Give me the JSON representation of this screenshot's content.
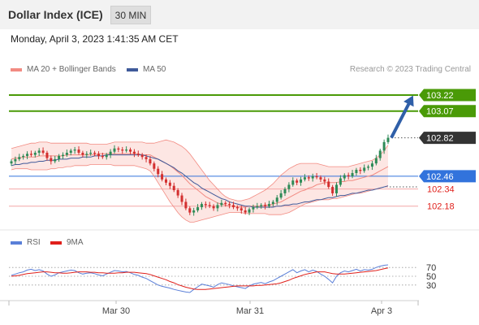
{
  "header": {
    "title": "Dollar Index (ICE)",
    "timeframe": "30 MIN",
    "datetime": "Monday, April 3, 2023 1:41:35 AM CET"
  },
  "legend": {
    "bollinger": "MA 20 + Bollinger Bands",
    "ma50": "MA 50",
    "credit": "Research © 2023 Trading Central"
  },
  "rsi_legend": {
    "rsi": "RSI",
    "ma9": "9MA"
  },
  "colors": {
    "bull": "#2e8b57",
    "bear": "#d32f2f",
    "band_fill": "#fde0dc",
    "ma20": "#f28b82",
    "ma50": "#3f5a9a",
    "resistance": "#4a9a07",
    "support_red": "#f4a7a7",
    "support_blue": "#3273dc",
    "last_price": "#333333",
    "arrow": "#2f5fa8",
    "rsi": "#5a7fd8",
    "rsi_ma": "#e0201b"
  },
  "chart_data": [
    {
      "type": "candlestick",
      "title": "Dollar Index (ICE)",
      "timeframe": "30 MIN",
      "ylim": [
        101.98,
        103.38
      ],
      "xlabels": [
        "Mar 30",
        "Mar 31",
        "Apr 3"
      ],
      "overlays": [
        "MA 20 + Bollinger Bands",
        "MA 50"
      ],
      "levels": [
        {
          "value": 103.22,
          "label": "103.22",
          "style": "resistance",
          "kind": "line",
          "badge": "green"
        },
        {
          "value": 103.07,
          "label": "103.07",
          "style": "resistance",
          "kind": "line",
          "badge": "green"
        },
        {
          "value": 102.82,
          "label": "102.82",
          "style": "last_price",
          "kind": "dotted",
          "badge": "dark"
        },
        {
          "value": 102.46,
          "label": "102.46",
          "style": "support_blue",
          "kind": "line",
          "badge": "blue"
        },
        {
          "value": 102.34,
          "label": "102.34",
          "style": "support_red",
          "kind": "line",
          "badge": "text"
        },
        {
          "value": 102.18,
          "label": "102.18",
          "style": "support_red",
          "kind": "line",
          "badge": "text"
        }
      ],
      "arrow": {
        "from": 102.82,
        "to": 103.22
      },
      "close": [
        102.6,
        102.62,
        102.64,
        102.65,
        102.67,
        102.66,
        102.68,
        102.7,
        102.68,
        102.63,
        102.6,
        102.62,
        102.65,
        102.66,
        102.68,
        102.7,
        102.71,
        102.68,
        102.66,
        102.67,
        102.68,
        102.67,
        102.65,
        102.64,
        102.66,
        102.69,
        102.72,
        102.71,
        102.7,
        102.71,
        102.69,
        102.67,
        102.66,
        102.64,
        102.62,
        102.58,
        102.53,
        102.48,
        102.43,
        102.4,
        102.37,
        102.33,
        102.28,
        102.22,
        102.16,
        102.12,
        102.14,
        102.17,
        102.2,
        102.19,
        102.18,
        102.16,
        102.19,
        102.21,
        102.2,
        102.19,
        102.17,
        102.16,
        102.14,
        102.12,
        102.15,
        102.17,
        102.18,
        102.19,
        102.18,
        102.2,
        102.22,
        102.26,
        102.3,
        102.34,
        102.38,
        102.42,
        102.4,
        102.43,
        102.45,
        102.44,
        102.46,
        102.45,
        102.43,
        102.41,
        102.36,
        102.3,
        102.38,
        102.44,
        102.47,
        102.46,
        102.49,
        102.52,
        102.51,
        102.54,
        102.55,
        102.58,
        102.63,
        102.7,
        102.78,
        102.82
      ],
      "ma20": [
        102.62,
        102.63,
        102.63,
        102.64,
        102.64,
        102.64,
        102.64,
        102.65,
        102.65,
        102.65,
        102.65,
        102.65,
        102.65,
        102.65,
        102.66,
        102.66,
        102.66,
        102.66,
        102.66,
        102.66,
        102.66,
        102.66,
        102.67,
        102.67,
        102.67,
        102.67,
        102.67,
        102.67,
        102.67,
        102.67,
        102.67,
        102.67,
        102.67,
        102.66,
        102.66,
        102.66,
        102.64,
        102.62,
        102.6,
        102.58,
        102.56,
        102.53,
        102.5,
        102.47,
        102.43,
        102.39,
        102.36,
        102.33,
        102.3,
        102.27,
        102.25,
        102.23,
        102.21,
        102.2,
        102.19,
        102.18,
        102.18,
        102.17,
        102.17,
        102.17,
        102.18,
        102.18,
        102.18,
        102.18,
        102.19,
        102.19,
        102.2,
        102.21,
        102.22,
        102.24,
        102.26,
        102.28,
        102.3,
        102.32,
        102.33,
        102.35,
        102.36,
        102.38,
        102.39,
        102.4,
        102.4,
        102.4,
        102.4,
        102.41,
        102.41,
        102.42,
        102.42,
        102.43,
        102.44,
        102.45,
        102.46,
        102.47,
        102.49,
        102.51,
        102.53,
        102.55
      ],
      "bb_upper": [
        102.72,
        102.73,
        102.74,
        102.75,
        102.76,
        102.77,
        102.77,
        102.78,
        102.78,
        102.78,
        102.77,
        102.77,
        102.77,
        102.77,
        102.77,
        102.77,
        102.77,
        102.77,
        102.77,
        102.77,
        102.76,
        102.76,
        102.76,
        102.76,
        102.76,
        102.77,
        102.78,
        102.78,
        102.78,
        102.78,
        102.78,
        102.78,
        102.78,
        102.78,
        102.77,
        102.77,
        102.77,
        102.78,
        102.79,
        102.8,
        102.79,
        102.78,
        102.76,
        102.74,
        102.71,
        102.67,
        102.62,
        102.57,
        102.52,
        102.47,
        102.42,
        102.38,
        102.34,
        102.3,
        102.27,
        102.25,
        102.24,
        102.23,
        102.23,
        102.24,
        102.25,
        102.27,
        102.29,
        102.31,
        102.33,
        102.36,
        102.39,
        102.43,
        102.47,
        102.5,
        102.53,
        102.55,
        102.57,
        102.58,
        102.58,
        102.58,
        102.58,
        102.58,
        102.57,
        102.56,
        102.55,
        102.55,
        102.55,
        102.55,
        102.55,
        102.55,
        102.56,
        102.57,
        102.58,
        102.59,
        102.6,
        102.61,
        102.63,
        102.66,
        102.7,
        102.75
      ],
      "bb_lower": [
        102.52,
        102.53,
        102.53,
        102.53,
        102.53,
        102.52,
        102.52,
        102.52,
        102.52,
        102.52,
        102.53,
        102.53,
        102.54,
        102.54,
        102.55,
        102.55,
        102.56,
        102.56,
        102.56,
        102.56,
        102.57,
        102.57,
        102.57,
        102.57,
        102.57,
        102.57,
        102.56,
        102.56,
        102.56,
        102.56,
        102.56,
        102.56,
        102.55,
        102.54,
        102.53,
        102.51,
        102.46,
        102.4,
        102.34,
        102.28,
        102.22,
        102.17,
        102.12,
        102.08,
        102.05,
        102.03,
        102.03,
        102.04,
        102.05,
        102.06,
        102.07,
        102.08,
        102.09,
        102.1,
        102.11,
        102.12,
        102.12,
        102.12,
        102.12,
        102.11,
        102.11,
        102.11,
        102.11,
        102.11,
        102.11,
        102.1,
        102.1,
        102.1,
        102.1,
        102.11,
        102.12,
        102.14,
        102.16,
        102.18,
        102.2,
        102.21,
        102.22,
        102.23,
        102.24,
        102.24,
        102.24,
        102.25,
        102.25,
        102.26,
        102.27,
        102.28,
        102.29,
        102.3,
        102.3,
        102.31,
        102.32,
        102.33,
        102.34,
        102.35,
        102.36,
        102.36
      ],
      "ma50": [
        102.56,
        102.57,
        102.57,
        102.58,
        102.58,
        102.59,
        102.59,
        102.6,
        102.6,
        102.61,
        102.61,
        102.61,
        102.62,
        102.62,
        102.62,
        102.63,
        102.63,
        102.63,
        102.64,
        102.64,
        102.64,
        102.65,
        102.65,
        102.65,
        102.66,
        102.66,
        102.66,
        102.66,
        102.66,
        102.66,
        102.66,
        102.66,
        102.66,
        102.66,
        102.65,
        102.64,
        102.63,
        102.62,
        102.6,
        102.58,
        102.56,
        102.54,
        102.51,
        102.49,
        102.46,
        102.43,
        102.4,
        102.38,
        102.35,
        102.33,
        102.31,
        102.29,
        102.27,
        102.25,
        102.24,
        102.22,
        102.21,
        102.2,
        102.19,
        102.18,
        102.18,
        102.17,
        102.17,
        102.17,
        102.17,
        102.17,
        102.17,
        102.18,
        102.18,
        102.19,
        102.19,
        102.2,
        102.2,
        102.21,
        102.22,
        102.22,
        102.23,
        102.24,
        102.24,
        102.25,
        102.26,
        102.26,
        102.27,
        102.28,
        102.28,
        102.29,
        102.3,
        102.3,
        102.31,
        102.32,
        102.33,
        102.33,
        102.34,
        102.35,
        102.36,
        102.37
      ]
    },
    {
      "type": "line",
      "title": "RSI",
      "ylim": [
        0,
        100
      ],
      "yticks": [
        70,
        50,
        30
      ],
      "series": [
        {
          "name": "RSI",
          "values": [
            52,
            55,
            58,
            60,
            64,
            66,
            63,
            65,
            62,
            55,
            50,
            53,
            58,
            60,
            62,
            64,
            63,
            58,
            55,
            57,
            58,
            56,
            53,
            51,
            55,
            59,
            63,
            62,
            60,
            61,
            58,
            54,
            52,
            48,
            45,
            40,
            35,
            30,
            27,
            25,
            23,
            20,
            18,
            16,
            14,
            13,
            20,
            26,
            32,
            30,
            28,
            25,
            31,
            35,
            33,
            31,
            28,
            26,
            24,
            22,
            28,
            32,
            34,
            36,
            33,
            37,
            40,
            45,
            50,
            55,
            60,
            65,
            58,
            62,
            65,
            60,
            64,
            61,
            55,
            50,
            43,
            35,
            50,
            58,
            62,
            60,
            63,
            66,
            62,
            65,
            64,
            66,
            70,
            73,
            75,
            76
          ]
        },
        {
          "name": "9MA",
          "values": [
            50,
            51,
            52,
            54,
            56,
            57,
            58,
            59,
            60,
            60,
            59,
            58,
            58,
            57,
            57,
            58,
            59,
            60,
            60,
            60,
            59,
            59,
            58,
            58,
            57,
            57,
            57,
            58,
            58,
            59,
            59,
            59,
            58,
            57,
            56,
            54,
            51,
            48,
            45,
            42,
            38,
            35,
            31,
            28,
            25,
            23,
            21,
            20,
            20,
            20,
            21,
            22,
            23,
            24,
            25,
            26,
            27,
            28,
            28,
            28,
            28,
            28,
            29,
            29,
            30,
            31,
            32,
            33,
            35,
            38,
            41,
            45,
            48,
            51,
            54,
            56,
            58,
            60,
            60,
            60,
            58,
            56,
            55,
            55,
            55,
            56,
            57,
            58,
            59,
            60,
            61,
            62,
            63,
            65,
            67,
            69
          ]
        }
      ]
    }
  ]
}
